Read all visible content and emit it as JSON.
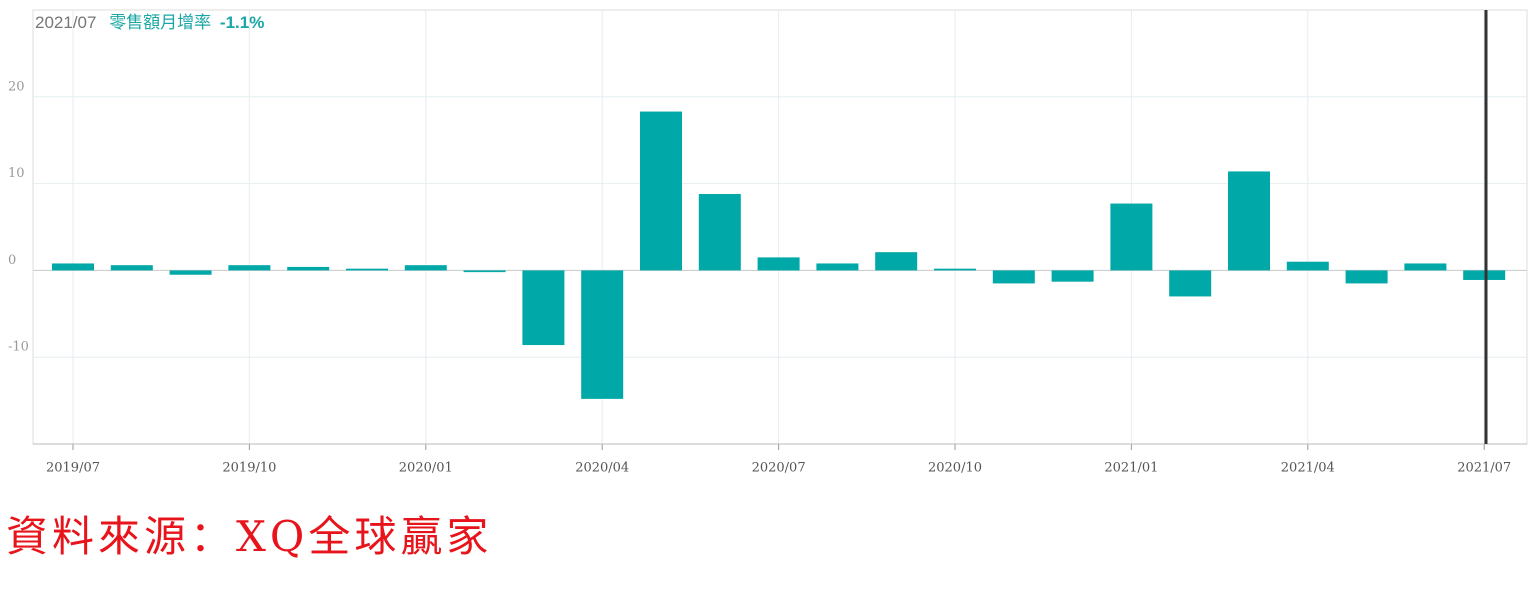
{
  "chart_data": {
    "type": "bar",
    "categories": [
      "2019/07",
      null,
      null,
      "2019/10",
      null,
      null,
      "2020/01",
      null,
      null,
      "2020/04",
      null,
      null,
      "2020/07",
      null,
      null,
      "2020/10",
      null,
      null,
      "2021/01",
      null,
      null,
      "2021/04",
      null,
      null,
      "2021/07"
    ],
    "series": [
      {
        "name": "零售額月增率",
        "color": "#00a8a8",
        "values": [
          0.8,
          0.6,
          -0.5,
          0.6,
          0.4,
          0.2,
          0.6,
          -0.2,
          -8.6,
          -14.8,
          18.3,
          8.8,
          1.5,
          0.8,
          2.1,
          0.2,
          -1.5,
          -1.3,
          7.7,
          -3.0,
          11.4,
          1.0,
          -1.5,
          0.8,
          -1.1
        ],
        "value_labels": [
          null,
          null,
          null,
          null,
          null,
          null,
          null,
          null,
          null,
          null,
          null,
          null,
          null,
          null,
          null,
          null,
          null,
          null,
          null,
          null,
          null,
          null,
          null,
          null,
          "-1.1%"
        ]
      }
    ],
    "ylim": [
      -20,
      30
    ],
    "yticks": [
      -10,
      0,
      10,
      20
    ],
    "grid": true,
    "source": "資料來源：XQ全球贏家"
  }
}
